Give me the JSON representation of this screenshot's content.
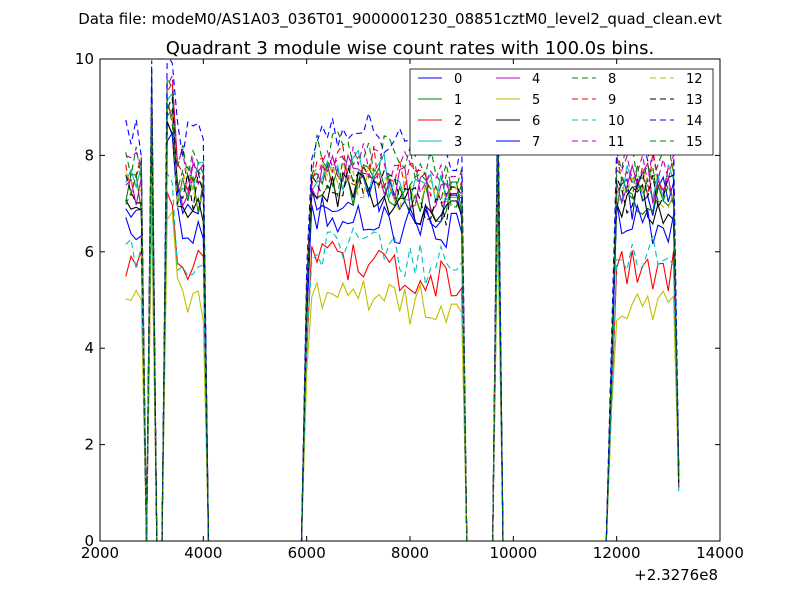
{
  "figure": {
    "suptitle": "Data file: modeM0/AS1A03_036T01_9000001230_08851cztM0_level2_quad_clean.evt"
  },
  "chart_data": {
    "type": "line",
    "title": "Quadrant 3 module wise count rates with 100.0s bins.",
    "xlabel": "",
    "ylabel": "",
    "xlim": [
      2000,
      14000
    ],
    "ylim": [
      0,
      10
    ],
    "x_offset_label": "+2.3276e8",
    "x_ticks": [
      2000,
      4000,
      6000,
      8000,
      10000,
      12000,
      14000
    ],
    "x_tick_labels": [
      "2000",
      "4000",
      "6000",
      "8000",
      "10000",
      "12000",
      "14000"
    ],
    "y_ticks": [
      0,
      2,
      4,
      6,
      8,
      10
    ],
    "y_tick_labels": [
      "0",
      "2",
      "4",
      "6",
      "8",
      "10"
    ],
    "grid": false,
    "legend_position": "top-right",
    "legend_columns": 4,
    "segments": [
      {
        "x_start": 2500,
        "x_end": 2900,
        "shape": "plateau"
      },
      {
        "x_start": 2900,
        "x_end": 3200,
        "shape": "dip"
      },
      {
        "x_start": 3200,
        "x_end": 4100,
        "shape": "plateau"
      },
      {
        "x_start": 4100,
        "x_end": 5900,
        "shape": "zero"
      },
      {
        "x_start": 5900,
        "x_end": 9100,
        "shape": "plateau"
      },
      {
        "x_start": 9100,
        "x_end": 9600,
        "shape": "zero"
      },
      {
        "x_start": 9600,
        "x_end": 9800,
        "shape": "spike"
      },
      {
        "x_start": 9800,
        "x_end": 11800,
        "shape": "zero"
      },
      {
        "x_start": 11800,
        "x_end": 13200,
        "shape": "plateau"
      }
    ],
    "series": [
      {
        "name": "0",
        "color": "#0000ff",
        "dash": "solid",
        "level": 7.1
      },
      {
        "name": "1",
        "color": "#008000",
        "dash": "solid",
        "level": 7.2
      },
      {
        "name": "2",
        "color": "#ff0000",
        "dash": "solid",
        "level": 5.6
      },
      {
        "name": "3",
        "color": "#00bfbf",
        "dash": "solid",
        "level": 7.5
      },
      {
        "name": "4",
        "color": "#bf00bf",
        "dash": "solid",
        "level": 7.4
      },
      {
        "name": "5",
        "color": "#bfbf00",
        "dash": "solid",
        "level": 5.0
      },
      {
        "name": "6",
        "color": "#000000",
        "dash": "solid",
        "level": 7.0
      },
      {
        "name": "7",
        "color": "#0000ff",
        "dash": "solid",
        "level": 6.6
      },
      {
        "name": "8",
        "color": "#008000",
        "dash": "dashed",
        "level": 7.9
      },
      {
        "name": "9",
        "color": "#ff0000",
        "dash": "dashed",
        "level": 7.6
      },
      {
        "name": "10",
        "color": "#00bfbf",
        "dash": "dashed",
        "level": 5.9
      },
      {
        "name": "11",
        "color": "#bf00bf",
        "dash": "dashed",
        "level": 7.7
      },
      {
        "name": "12",
        "color": "#bfbf00",
        "dash": "dashed",
        "level": 7.3
      },
      {
        "name": "13",
        "color": "#000000",
        "dash": "dashed",
        "level": 7.2
      },
      {
        "name": "14",
        "color": "#0000ff",
        "dash": "dashed",
        "level": 8.3
      },
      {
        "name": "15",
        "color": "#008000",
        "dash": "dashed",
        "level": 7.4
      }
    ]
  }
}
